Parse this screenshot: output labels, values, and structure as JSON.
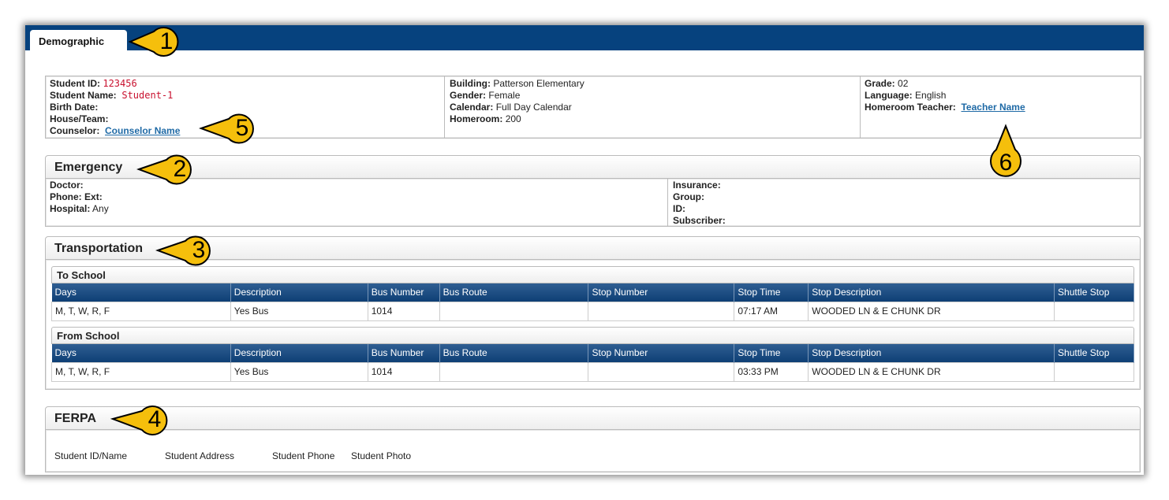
{
  "tab": {
    "label": "Demographic"
  },
  "demographic": {
    "col1": [
      {
        "label": "Student ID:",
        "value": "123456"
      },
      {
        "label": "Student Name:",
        "value": "Student-1"
      },
      {
        "label": "Birth Date:",
        "value": ""
      },
      {
        "label": "House/Team:",
        "value": ""
      },
      {
        "label": "Counselor:",
        "value": "Counselor Name"
      }
    ],
    "col2": [
      {
        "label": "Building:",
        "value": "Patterson Elementary"
      },
      {
        "label": "Gender:",
        "value": "Female"
      },
      {
        "label": "Calendar:",
        "value": "Full Day Calendar"
      },
      {
        "label": "Homeroom:",
        "value": "200"
      }
    ],
    "col3": [
      {
        "label": "Grade:",
        "value": "02"
      },
      {
        "label": "Language:",
        "value": "English"
      },
      {
        "label": "Homeroom Teacher:",
        "value": "Teacher Name"
      }
    ]
  },
  "emergency": {
    "title": "Emergency",
    "left": [
      {
        "label": "Doctor:",
        "value": ""
      },
      {
        "label": "Phone:",
        "value": ""
      },
      {
        "label": "Ext:",
        "value": ""
      },
      {
        "label": "Hospital:",
        "value": "Any"
      }
    ],
    "right": [
      {
        "label": "Insurance:"
      },
      {
        "label": "Group:"
      },
      {
        "label": "ID:"
      },
      {
        "label": "Subscriber:"
      }
    ]
  },
  "transportation": {
    "title": "Transportation",
    "columns": [
      "Days",
      "Description",
      "Bus Number",
      "Bus Route",
      "Stop Number",
      "Stop Time",
      "Stop Description",
      "Shuttle Stop"
    ],
    "to": {
      "title": "To School",
      "row": [
        "M, T, W, R, F",
        "Yes Bus",
        "1014",
        "",
        "",
        "07:17 AM",
        "WOODED LN & E CHUNK DR",
        ""
      ]
    },
    "from": {
      "title": "From School",
      "row": [
        "M, T, W, R, F",
        "Yes Bus",
        "1014",
        "",
        "",
        "03:33 PM",
        "WOODED LN & E CHUNK DR",
        ""
      ]
    }
  },
  "ferpa": {
    "title": "FERPA",
    "items": [
      "Student ID/Name",
      "Student Address",
      "Student Phone",
      "Student Photo"
    ]
  },
  "callouts": [
    "1",
    "2",
    "3",
    "4",
    "5",
    "6"
  ],
  "colors": {
    "header": "#06427e",
    "callout": "#f5bf0c",
    "red": "#c8102e",
    "link": "#1f6aa6"
  }
}
